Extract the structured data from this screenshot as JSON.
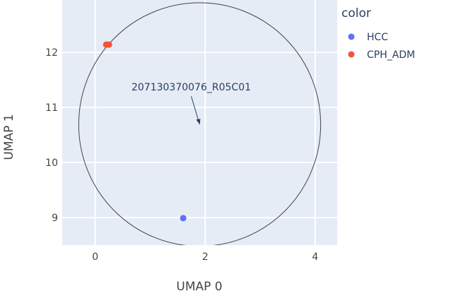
{
  "chart_data": {
    "type": "scatter",
    "xlabel": "UMAP 0",
    "ylabel": "UMAP 1",
    "xlim": [
      -0.6,
      4.4
    ],
    "ylim": [
      8.5,
      12.95
    ],
    "x_ticks": [
      0,
      2,
      4
    ],
    "y_ticks": [
      9,
      10,
      11,
      12
    ],
    "grid": true,
    "legend": {
      "title": "color",
      "position": "right"
    },
    "series": [
      {
        "name": "HCC",
        "color": "#636efa",
        "points": [
          {
            "x": 1.6,
            "y": 8.99
          }
        ]
      },
      {
        "name": "CPH_ADM",
        "color": "#ef553b",
        "points": [
          {
            "x": 0.2,
            "y": 12.14
          },
          {
            "x": 0.25,
            "y": 12.14
          }
        ]
      }
    ],
    "annotations": [
      {
        "text": "207130370076_R05C01",
        "x": 1.9,
        "y": 10.69
      }
    ],
    "shapes": [
      {
        "type": "circle",
        "x0": -0.3,
        "x1": 4.1,
        "y0": 8.48,
        "y1": 12.9
      }
    ],
    "plot_background": "#e5ecf6"
  }
}
